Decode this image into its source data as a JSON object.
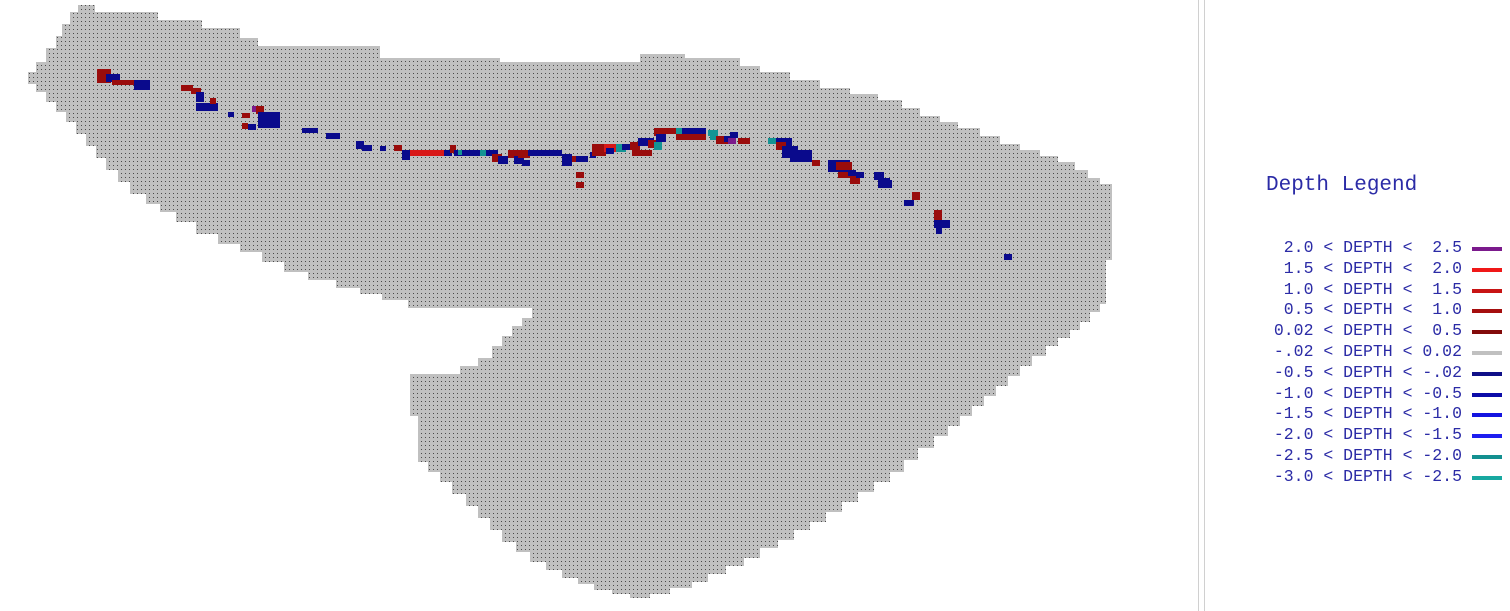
{
  "legend": {
    "title": "Depth Legend",
    "items": [
      {
        "label": "2.0 < DEPTH <  2.5",
        "color": "#7b1a8c"
      },
      {
        "label": "1.5 < DEPTH <  2.0",
        "color": "#f01818"
      },
      {
        "label": "1.0 < DEPTH <  1.5",
        "color": "#c81414"
      },
      {
        "label": "0.5 < DEPTH <  1.0",
        "color": "#a50e0e"
      },
      {
        "label": "0.02 < DEPTH <  0.5",
        "color": "#820a0a"
      },
      {
        "label": "-.02 < DEPTH < 0.02",
        "color": "#c0c0c0"
      },
      {
        "label": "-0.5 < DEPTH < -.02",
        "color": "#101088"
      },
      {
        "label": "-1.0 < DEPTH < -0.5",
        "color": "#0c0ca8"
      },
      {
        "label": "-1.5 < DEPTH < -1.0",
        "color": "#1414e0"
      },
      {
        "label": "-2.0 < DEPTH < -1.5",
        "color": "#1e1ef0"
      },
      {
        "label": "-2.5 < DEPTH < -2.0",
        "color": "#139090"
      },
      {
        "label": "-3.0 < DEPTH < -2.5",
        "color": "#18a8a0"
      }
    ]
  },
  "map": {
    "base_color": "#c0c0c0",
    "dot_color": "#4a4a4a",
    "classes": {
      "dr": "#9a0c0c",
      "db": "#0a0a8c",
      "cy": "#149494",
      "pu": "#7b1a8c",
      "rd": "#d81818"
    }
  }
}
